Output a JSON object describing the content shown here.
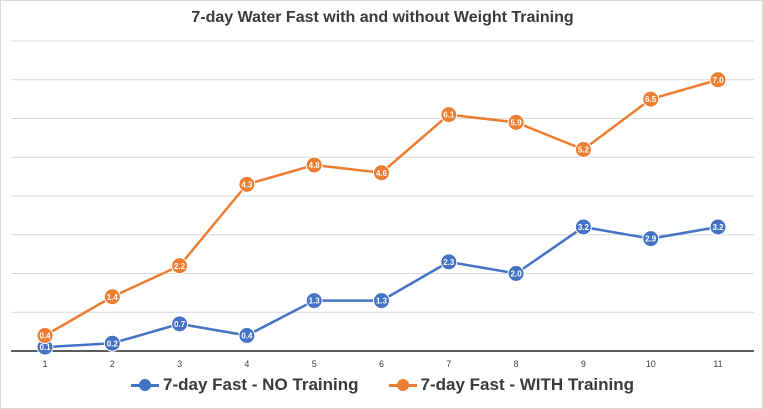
{
  "chart_data": {
    "type": "line",
    "title": "7-day Water Fast with and without Weight Training",
    "xlabel": "",
    "ylabel": "",
    "x": [
      "1",
      "2",
      "3",
      "4",
      "5",
      "6",
      "7",
      "8",
      "9",
      "10",
      "11"
    ],
    "ylim": [
      0,
      8
    ],
    "grid": true,
    "legend_placement": "bottom",
    "series": [
      {
        "name": "7-day Fast - NO Training",
        "color": "#4472c4",
        "values": [
          0.1,
          0.2,
          0.7,
          0.4,
          1.3,
          1.3,
          2.3,
          2.0,
          3.2,
          2.9,
          3.2
        ]
      },
      {
        "name": "7-day Fast - WITH Training",
        "color": "#ed7d31",
        "values": [
          0.4,
          1.4,
          2.2,
          4.3,
          4.8,
          4.6,
          6.1,
          5.9,
          5.2,
          6.5,
          7.0
        ]
      }
    ]
  }
}
